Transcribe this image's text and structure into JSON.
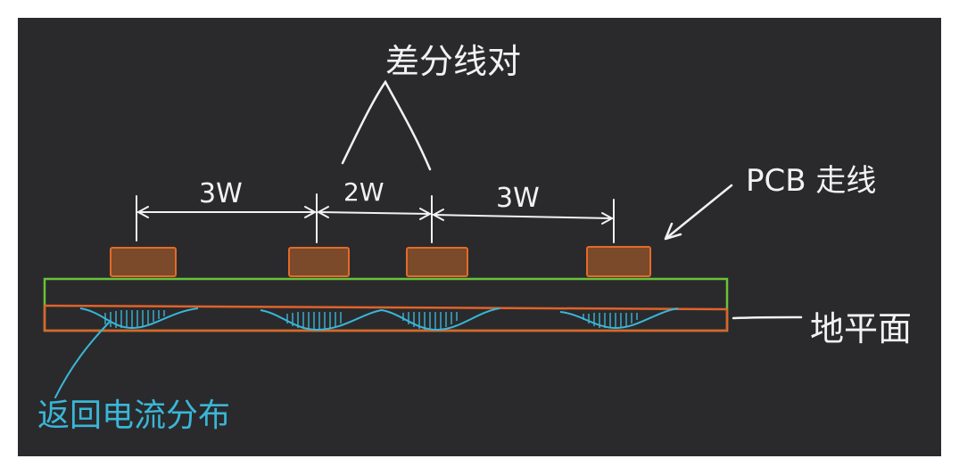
{
  "title": "差分线对",
  "labels": {
    "pcb_trace": "PCB 走线",
    "ground_plane": "地平面",
    "return_current": "返回电流分布"
  },
  "dimensions": {
    "left_gap": "3W",
    "pair_gap": "2W",
    "right_gap": "3W"
  },
  "colors": {
    "background": "#2a2a2c",
    "ink": "#f2f2f2",
    "trace_fill": "#7a4a2a",
    "trace_stroke": "#e36a2a",
    "dielectric_top": "#69c23a",
    "ground_layer": "#e0632a",
    "current": "#3ab6d8"
  }
}
